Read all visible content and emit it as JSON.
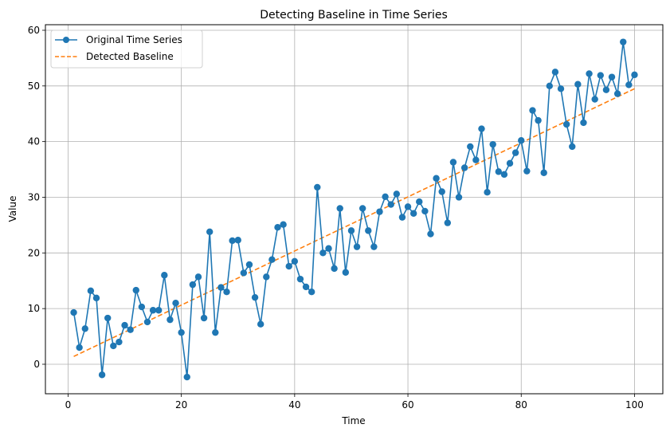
{
  "chart_data": {
    "type": "line",
    "title": "Detecting Baseline in Time Series",
    "xlabel": "Time",
    "ylabel": "Value",
    "xlim": [
      -4,
      105
    ],
    "ylim": [
      -5.3,
      61
    ],
    "xticks": [
      0,
      20,
      40,
      60,
      80,
      100
    ],
    "yticks": [
      0,
      10,
      20,
      30,
      40,
      50,
      60
    ],
    "grid": true,
    "legend_position": "upper left",
    "x": [
      1,
      2,
      3,
      4,
      5,
      6,
      7,
      8,
      9,
      10,
      11,
      12,
      13,
      14,
      15,
      16,
      17,
      18,
      19,
      20,
      21,
      22,
      23,
      24,
      25,
      26,
      27,
      28,
      29,
      30,
      31,
      32,
      33,
      34,
      35,
      36,
      37,
      38,
      39,
      40,
      41,
      42,
      43,
      44,
      45,
      46,
      47,
      48,
      49,
      50,
      51,
      52,
      53,
      54,
      55,
      56,
      57,
      58,
      59,
      60,
      61,
      62,
      63,
      64,
      65,
      66,
      67,
      68,
      69,
      70,
      71,
      72,
      73,
      74,
      75,
      76,
      77,
      78,
      79,
      80,
      81,
      82,
      83,
      84,
      85,
      86,
      87,
      88,
      89,
      90,
      91,
      92,
      93,
      94,
      95,
      96,
      97,
      98,
      99,
      100
    ],
    "series": [
      {
        "name": "Original Time Series",
        "style": "line-marker",
        "color": "#1f77b4",
        "values": [
          9.3,
          3.0,
          6.4,
          13.2,
          11.9,
          -1.9,
          8.3,
          3.3,
          4.0,
          7.0,
          6.2,
          13.3,
          10.3,
          7.6,
          9.7,
          9.7,
          16.0,
          8.0,
          11.0,
          5.7,
          -2.3,
          14.3,
          15.7,
          8.3,
          23.8,
          5.7,
          13.8,
          13.0,
          22.2,
          22.3,
          16.4,
          17.9,
          12.0,
          7.2,
          15.7,
          18.8,
          24.6,
          25.1,
          17.6,
          18.5,
          15.3,
          13.9,
          13.0,
          31.8,
          20.0,
          20.8,
          17.2,
          28.0,
          16.5,
          24.0,
          21.1,
          28.0,
          24.0,
          21.1,
          27.4,
          30.1,
          28.7,
          30.6,
          26.4,
          28.3,
          27.1,
          29.2,
          27.5,
          23.4,
          33.4,
          31.0,
          25.4,
          36.3,
          30.0,
          35.3,
          39.1,
          36.7,
          42.3,
          30.9,
          39.5,
          34.6,
          34.1,
          36.1,
          38.0,
          40.2,
          34.7,
          45.6,
          43.8,
          34.4,
          50.0,
          52.5,
          49.5,
          43.1,
          39.1,
          50.3,
          43.4,
          52.2,
          47.6,
          51.9,
          49.3,
          51.6,
          48.6,
          57.9,
          50.2,
          52.0
        ]
      },
      {
        "name": "Detected Baseline",
        "style": "dashed",
        "color": "#ff7f0e",
        "start": [
          1,
          1.4
        ],
        "end": [
          100,
          49.5
        ]
      }
    ]
  },
  "legend": {
    "items": [
      {
        "label": "Original Time Series"
      },
      {
        "label": "Detected Baseline"
      }
    ]
  },
  "colors": {
    "series1": "#1f77b4",
    "series2": "#ff7f0e",
    "grid": "#b0b0b0",
    "frame": "#000000"
  }
}
